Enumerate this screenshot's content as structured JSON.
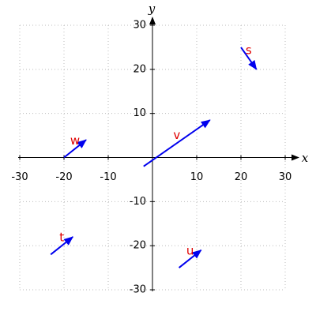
{
  "chart_data": {
    "type": "vector",
    "xlim": [
      -30,
      30
    ],
    "ylim": [
      -30,
      30
    ],
    "xticks": [
      -30,
      -20,
      -10,
      10,
      20,
      30
    ],
    "yticks": [
      -30,
      -20,
      -10,
      10,
      20,
      30
    ],
    "grid": true,
    "x_label": "x",
    "y_label": "y",
    "color": "#0000ee",
    "label_color": "#e00000",
    "vectors": [
      {
        "name": "s",
        "start": [
          20,
          25
        ],
        "end": [
          23.5,
          20
        ]
      },
      {
        "name": "v",
        "start": [
          -2,
          -2
        ],
        "end": [
          13,
          8.5
        ]
      },
      {
        "name": "w",
        "start": [
          -20,
          0
        ],
        "end": [
          -15,
          4
        ]
      },
      {
        "name": "t",
        "start": [
          -23,
          -22
        ],
        "end": [
          -18,
          -18
        ]
      },
      {
        "name": "u",
        "start": [
          6,
          -25
        ],
        "end": [
          11,
          -21
        ]
      }
    ]
  }
}
